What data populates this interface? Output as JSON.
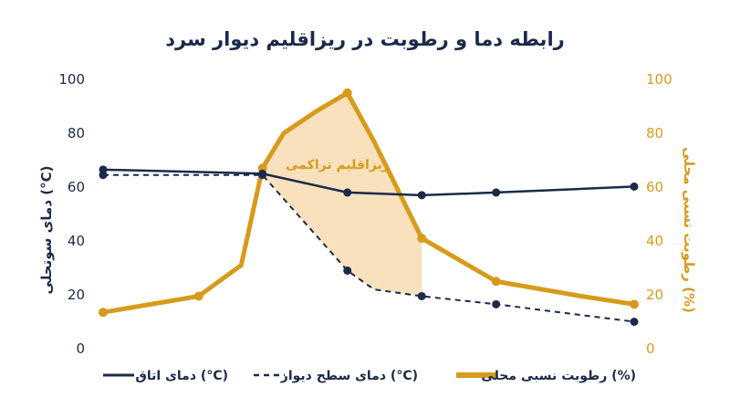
{
  "chart_data": {
    "type": "line",
    "title": "رابطه دما و رطوبت در ریزاقلیم دیوار سرد",
    "y_left": {
      "label": "دمای سوتحلی (°C)",
      "ylim": [
        0,
        100
      ],
      "ticks": [
        "0",
        "20",
        "40",
        "60",
        "80",
        "100"
      ]
    },
    "y_right": {
      "label": "رطوبت نسبی محلی (%)",
      "ylim": [
        0,
        100
      ],
      "ticks": [
        "0",
        "20",
        "40",
        "60",
        "80",
        "100"
      ]
    },
    "xlim": [
      0,
      100
    ],
    "grid": false,
    "legend_position": "bottom",
    "annotation": "ریزاقلیم تراکمی",
    "colors": {
      "navy": "#1b2a4a",
      "gold": "#d79b1c",
      "shade": "#f7dcb0"
    },
    "series": [
      {
        "name": "دمای اتاق (°C)",
        "axis": "left",
        "style": "solid",
        "x": [
          0,
          30,
          46,
          60,
          74,
          100
        ],
        "y": [
          66.5,
          65,
          58,
          57,
          58,
          60.2
        ]
      },
      {
        "name": "دمای سطح دیوار (°C)",
        "axis": "left",
        "style": "dashed",
        "x": [
          0,
          30,
          46,
          51,
          60,
          74,
          100
        ],
        "y": [
          64.5,
          64.5,
          29,
          22,
          19.5,
          16.5,
          10
        ]
      },
      {
        "name": "رطوبت نسبی محلی (%)",
        "axis": "right",
        "style": "thick",
        "x": [
          0,
          18,
          26,
          30,
          34,
          40,
          46,
          51,
          60,
          74,
          90,
          100
        ],
        "y": [
          13.5,
          19.5,
          31,
          67,
          80,
          88,
          95,
          77,
          41,
          25,
          19.5,
          16.5
        ],
        "markers_at": [
          0,
          18,
          30,
          46,
          60,
          74,
          100
        ]
      }
    ],
    "shaded_region": {
      "x_from": 30,
      "x_to": 60
    }
  }
}
